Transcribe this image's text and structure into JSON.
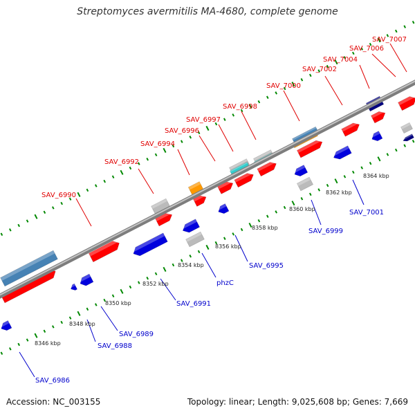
{
  "title": "Streptomyces avermitilis MA-4680, complete genome",
  "footer": {
    "accession": "Accession: NC_003155",
    "summary": "Topology: linear; Length: 9,025,608 bp; Genes: 7,669"
  },
  "colors": {
    "top_strand_label": "#e00000",
    "bottom_strand_label": "#0000cc",
    "red_gene": "#ff0000",
    "blue_gene": "#0000dd",
    "grey_gene": "#bbbbbb",
    "orange_gene": "#ff9900",
    "cyan_gene": "#33cccc",
    "steelblue_gene": "#4682b4",
    "navy_gene": "#000080",
    "axis": "#999999",
    "tick": "#008800"
  },
  "scale_labels": [
    "8346 kbp",
    "8348 kbp",
    "8350 kbp",
    "8352 kbp",
    "8354 kbp",
    "8356 kbp",
    "8358 kbp",
    "8360 kbp",
    "8362 kbp",
    "8364 kbp"
  ],
  "top_labels": [
    "SAV_6990",
    "SAV_6992",
    "SAV_6994",
    "SAV_6996",
    "SAV_6997",
    "SAV_6998",
    "SAV_7000",
    "SAV_7002",
    "SAV_7004",
    "SAV_7006",
    "SAV_7007"
  ],
  "bottom_labels": [
    "SAV_6986",
    "SAV_6988",
    "SAV_6989",
    "SAV_6991",
    "phzC",
    "SAV_6995",
    "SAV_6999",
    "SAV_7001"
  ]
}
